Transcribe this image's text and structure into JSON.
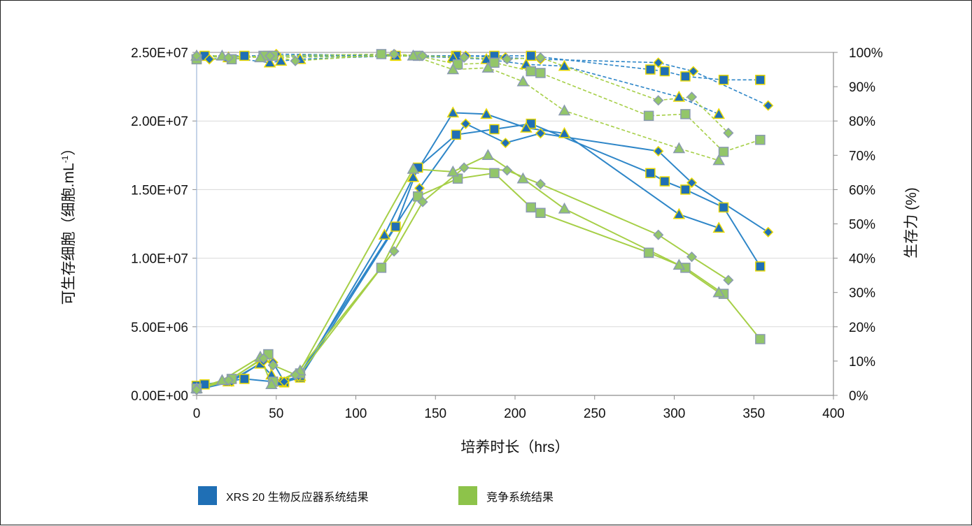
{
  "chart_data": {
    "type": "line",
    "xlabel": "培养时长（hrs）",
    "ylabel_left": "可生存细胞（细胞.mL",
    "ylabel_left_sup": "-1",
    "ylabel_left_suffix": "）",
    "ylabel_right": "生存力 (%)",
    "xlim": [
      0,
      400
    ],
    "x_ticks": [
      "0",
      "50",
      "100",
      "150",
      "200",
      "250",
      "300",
      "350",
      "400"
    ],
    "ylim_left": [
      0,
      25000000
    ],
    "y_left_ticks": [
      "0.00E+00",
      "5.00E+06",
      "1.00E+07",
      "1.50E+07",
      "2.00E+07",
      "2.50E+07"
    ],
    "ylim_right": [
      0,
      100
    ],
    "y_right_ticks": [
      "0%",
      "10%",
      "20%",
      "30%",
      "40%",
      "50%",
      "60%",
      "70%",
      "80%",
      "90%",
      "100%"
    ],
    "grid": true,
    "legend_position": "bottom-left",
    "legend": [
      {
        "label": "XRS 20 生物反应器系统结果",
        "color": "#1F6FB5"
      },
      {
        "label": "竞争系统结果",
        "color": "#8DC34A"
      }
    ],
    "colors": {
      "xrs_fill": "#1F6FB5",
      "xrs_line": "#2E86C8",
      "xrs_marker_edge": "#E8D800",
      "comp_fill": "#93C66A",
      "comp_line": "#A6CF47",
      "comp_marker_edge": "#8A9AB0",
      "grid": "#D9D9D9",
      "axis": "#8C8C8C"
    },
    "series": [
      {
        "group": "XRS",
        "metric": "viable_cells",
        "marker": "square",
        "x": [
          0,
          5,
          30,
          48,
          55,
          65,
          125,
          139,
          163,
          187,
          210,
          285,
          294,
          307,
          331,
          354
        ],
        "y": [
          700000,
          800000,
          1200000,
          1000000,
          950000,
          1300000,
          12300000,
          16600000,
          19000000,
          19400000,
          19800000,
          16200000,
          15600000,
          15000000,
          13700000,
          9400000
        ]
      },
      {
        "group": "XRS",
        "metric": "viable_cells",
        "marker": "triangle",
        "x": [
          0,
          20,
          40,
          47,
          53,
          65,
          118,
          136,
          161,
          182,
          207,
          231,
          303,
          328
        ],
        "y": [
          500000,
          1000000,
          2300000,
          1500000,
          1000000,
          1400000,
          11700000,
          15900000,
          20600000,
          20500000,
          19500000,
          19100000,
          13200000,
          12200000
        ]
      },
      {
        "group": "XRS",
        "metric": "viable_cells",
        "marker": "diamond",
        "x": [
          0,
          22,
          42,
          48,
          55,
          64,
          140,
          169,
          194,
          216,
          290,
          311,
          359
        ],
        "y": [
          400000,
          1000000,
          2500000,
          2400000,
          1000000,
          1400000,
          15100000,
          19800000,
          18400000,
          19100000,
          17800000,
          15500000,
          11900000
        ]
      },
      {
        "group": "COMP",
        "metric": "viable_cells",
        "marker": "square",
        "x": [
          0,
          22,
          45,
          48,
          65,
          116,
          139,
          164,
          187,
          210,
          216,
          284,
          307,
          331,
          354
        ],
        "y": [
          500000,
          1200000,
          3000000,
          1000000,
          1600000,
          9300000,
          14500000,
          15800000,
          16200000,
          13700000,
          13300000,
          10400000,
          9300000,
          7400000,
          4100000
        ]
      },
      {
        "group": "COMP",
        "metric": "viable_cells",
        "marker": "triangle",
        "x": [
          0,
          16,
          40,
          47,
          65,
          136,
          161,
          183,
          205,
          231,
          303,
          328
        ],
        "y": [
          500000,
          1100000,
          2800000,
          800000,
          1800000,
          16500000,
          16300000,
          17500000,
          15800000,
          13600000,
          9500000,
          7500000
        ]
      },
      {
        "group": "COMP",
        "metric": "viable_cells",
        "marker": "diamond",
        "x": [
          0,
          20,
          42,
          48,
          62,
          124,
          142,
          168,
          195,
          216,
          290,
          311,
          334
        ],
        "y": [
          400000,
          1100000,
          2700000,
          2200000,
          1500000,
          10500000,
          14100000,
          16600000,
          16400000,
          15400000,
          11700000,
          10100000,
          8400000
        ]
      },
      {
        "group": "XRS",
        "metric": "viability",
        "marker": "square",
        "x": [
          0,
          5,
          30,
          45,
          125,
          163,
          187,
          210,
          285,
          294,
          307,
          331,
          354
        ],
        "y": [
          98,
          99,
          99,
          99,
          99,
          99,
          99,
          99,
          95,
          94.5,
          93,
          92,
          92
        ]
      },
      {
        "group": "XRS",
        "metric": "viability",
        "marker": "triangle",
        "x": [
          0,
          20,
          46,
          53,
          65,
          125,
          161,
          182,
          207,
          231,
          303,
          328
        ],
        "y": [
          99,
          98.5,
          97,
          97.5,
          98,
          99,
          98.5,
          98,
          96.5,
          96,
          87,
          82
        ]
      },
      {
        "group": "XRS",
        "metric": "viability",
        "marker": "diamond",
        "x": [
          0,
          8,
          50,
          140,
          169,
          194,
          216,
          290,
          312,
          359
        ],
        "y": [
          99,
          98,
          99.5,
          99,
          99,
          98.5,
          98,
          97,
          94.5,
          84.5
        ]
      },
      {
        "group": "COMP",
        "metric": "viability",
        "marker": "square",
        "x": [
          0,
          22,
          42,
          48,
          116,
          139,
          164,
          187,
          210,
          216,
          284,
          307,
          331,
          354
        ],
        "y": [
          98,
          98,
          99,
          99,
          99.5,
          99,
          96.5,
          97,
          94.5,
          94,
          81.5,
          82,
          71,
          74.5
        ]
      },
      {
        "group": "COMP",
        "metric": "viability",
        "marker": "triangle",
        "x": [
          0,
          16,
          40,
          136,
          161,
          183,
          205,
          231,
          303,
          328
        ],
        "y": [
          99,
          99,
          98.5,
          99,
          95,
          95.5,
          91.5,
          83,
          72,
          68.5
        ]
      },
      {
        "group": "COMP",
        "metric": "viability",
        "marker": "diamond",
        "x": [
          0,
          20,
          46,
          62,
          124,
          142,
          168,
          195,
          216,
          290,
          311,
          334
        ],
        "y": [
          99,
          98.5,
          99,
          97.5,
          99.5,
          99,
          98.5,
          98,
          98.5,
          86,
          87,
          76.5
        ]
      }
    ]
  }
}
